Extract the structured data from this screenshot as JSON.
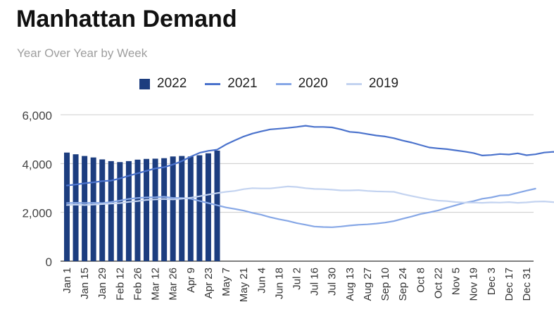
{
  "chart_data": {
    "type": "bar+line",
    "title": "Manhattan Demand",
    "subtitle": "Year Over Year by Week",
    "xlabel": "",
    "ylabel": "",
    "ylim": [
      0,
      6000
    ],
    "y_ticks": [
      0,
      2000,
      4000,
      6000
    ],
    "y_tick_labels": [
      "0",
      "2,000",
      "4,000",
      "6,000"
    ],
    "grid": true,
    "legend_position": "top",
    "x_labels": [
      "Jan 1",
      "Jan 15",
      "Jan 29",
      "Feb 12",
      "Feb 26",
      "Mar 12",
      "Mar 26",
      "Apr 9",
      "Apr 23",
      "May 7",
      "May 21",
      "Jun 4",
      "Jun 18",
      "Jul 2",
      "Jul 16",
      "Jul 30",
      "Aug 13",
      "Aug 27",
      "Sep 10",
      "Sep 24",
      "Oct 8",
      "Oct 22",
      "Nov 5",
      "Nov 19",
      "Dec 3",
      "Dec 17",
      "Dec 31"
    ],
    "series": [
      {
        "name": "2022",
        "kind": "bar",
        "color": "#1c3d7f",
        "values": [
          4450,
          4380,
          4310,
          4250,
          4170,
          4100,
          4060,
          4100,
          4160,
          4190,
          4200,
          4220,
          4290,
          4310,
          4290,
          4340,
          4420,
          4530
        ]
      },
      {
        "name": "2021",
        "kind": "line",
        "color": "#4a72cc",
        "values": [
          3100,
          3140,
          3190,
          3230,
          3280,
          3300,
          3390,
          3500,
          3600,
          3700,
          3800,
          3850,
          3960,
          4100,
          4280,
          4440,
          4520,
          4570,
          4780,
          4950,
          5110,
          5230,
          5320,
          5400,
          5430,
          5460,
          5500,
          5550,
          5500,
          5500,
          5480,
          5400,
          5300,
          5270,
          5210,
          5150,
          5110,
          5040,
          4940,
          4860,
          4760,
          4660,
          4620,
          4590,
          4540,
          4490,
          4430,
          4330,
          4350,
          4390,
          4370,
          4420,
          4340,
          4380,
          4450,
          4480,
          4460
        ]
      },
      {
        "name": "2020",
        "kind": "line",
        "color": "#86a7e6",
        "values": [
          2380,
          2390,
          2380,
          2390,
          2380,
          2420,
          2480,
          2550,
          2590,
          2610,
          2620,
          2640,
          2590,
          2590,
          2560,
          2470,
          2380,
          2290,
          2200,
          2140,
          2070,
          1980,
          1900,
          1800,
          1720,
          1650,
          1560,
          1490,
          1420,
          1400,
          1390,
          1420,
          1460,
          1490,
          1510,
          1540,
          1580,
          1640,
          1740,
          1830,
          1930,
          2000,
          2080,
          2190,
          2290,
          2390,
          2460,
          2560,
          2610,
          2690,
          2710,
          2800,
          2890,
          2970
        ]
      },
      {
        "name": "2019",
        "kind": "line",
        "color": "#c3d3f0",
        "values": [
          2300,
          2320,
          2300,
          2320,
          2340,
          2360,
          2380,
          2430,
          2460,
          2510,
          2530,
          2550,
          2530,
          2560,
          2600,
          2660,
          2730,
          2790,
          2840,
          2880,
          2950,
          2990,
          2980,
          2980,
          3020,
          3060,
          3040,
          2990,
          2960,
          2950,
          2930,
          2900,
          2900,
          2910,
          2880,
          2860,
          2850,
          2840,
          2750,
          2670,
          2600,
          2530,
          2480,
          2460,
          2420,
          2400,
          2400,
          2390,
          2410,
          2400,
          2420,
          2390,
          2410,
          2440,
          2450,
          2420,
          2400
        ]
      }
    ]
  }
}
